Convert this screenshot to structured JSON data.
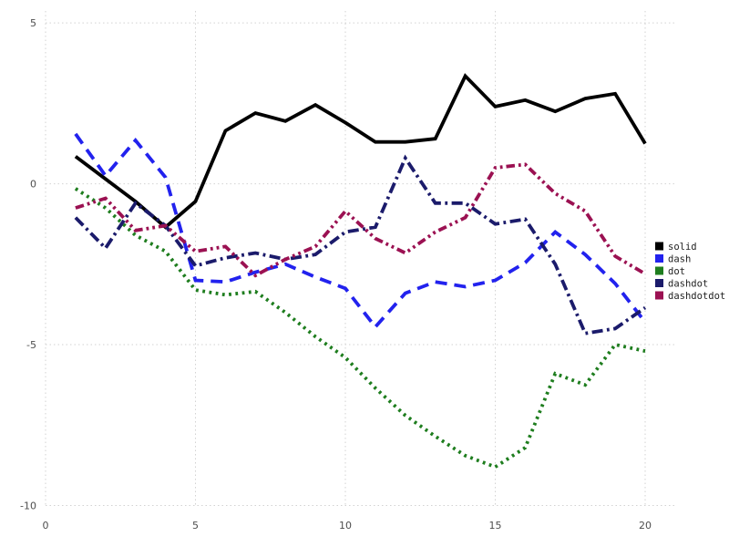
{
  "chart_data": {
    "type": "line",
    "x": [
      1,
      2,
      3,
      4,
      5,
      6,
      7,
      8,
      9,
      10,
      11,
      12,
      13,
      14,
      15,
      16,
      17,
      18,
      19,
      20
    ],
    "series": [
      {
        "name": "solid",
        "color": "#000000",
        "linestyle": "solid",
        "values": [
          0.85,
          0.15,
          -0.55,
          -1.35,
          -0.55,
          1.65,
          2.2,
          1.95,
          2.45,
          1.9,
          1.3,
          1.3,
          1.4,
          3.35,
          2.4,
          2.6,
          2.25,
          2.65,
          2.8,
          1.25
        ]
      },
      {
        "name": "dash",
        "color": "#2222ee",
        "linestyle": "dash",
        "values": [
          1.55,
          0.25,
          1.35,
          0.2,
          -3.0,
          -3.05,
          -2.75,
          -2.5,
          -2.9,
          -3.25,
          -4.45,
          -3.4,
          -3.05,
          -3.2,
          -3.0,
          -2.45,
          -1.5,
          -2.2,
          -3.1,
          -4.3
        ]
      },
      {
        "name": "dot",
        "color": "#1e7d1e",
        "linestyle": "dot",
        "values": [
          -0.15,
          -0.75,
          -1.6,
          -2.1,
          -3.3,
          -3.45,
          -3.35,
          -4.0,
          -4.75,
          -5.4,
          -6.35,
          -7.2,
          -7.85,
          -8.45,
          -8.8,
          -8.2,
          -5.9,
          -6.25,
          -5.0,
          -5.2
        ]
      },
      {
        "name": "dashdot",
        "color": "#1b1b6b",
        "linestyle": "dashdot",
        "values": [
          -1.05,
          -2.0,
          -0.6,
          -1.3,
          -2.55,
          -2.3,
          -2.15,
          -2.35,
          -2.2,
          -1.5,
          -1.35,
          0.8,
          -0.6,
          -0.6,
          -1.25,
          -1.1,
          -2.5,
          -4.65,
          -4.5,
          -3.85
        ]
      },
      {
        "name": "dashdotdot",
        "color": "#9b1152",
        "linestyle": "dashdotdot",
        "values": [
          -0.75,
          -0.45,
          -1.45,
          -1.3,
          -2.1,
          -1.95,
          -2.85,
          -2.35,
          -1.95,
          -0.85,
          -1.7,
          -2.15,
          -1.5,
          -1.05,
          0.5,
          0.6,
          -0.3,
          -0.85,
          -2.25,
          -2.8
        ]
      }
    ],
    "title": "",
    "xlabel": "",
    "ylabel": "",
    "xlim": [
      0,
      20
    ],
    "ylim": [
      -10,
      5
    ],
    "xtick_labels": [
      "0",
      "5",
      "10",
      "15",
      "20"
    ],
    "xtick_values": [
      0,
      5,
      10,
      15,
      20
    ],
    "ytick_labels": [
      "5",
      "0",
      "-5",
      "-10"
    ],
    "ytick_values": [
      5,
      0,
      -5,
      -10
    ],
    "grid": "dotted",
    "legend_position": "right",
    "legend_entries": [
      "solid",
      "dash",
      "dot",
      "dashdot",
      "dashdotdot"
    ]
  },
  "style": {
    "grid_color": "#d2d2d2",
    "tick_label_color": "#4d4d4d",
    "legend_text_color": "#222222",
    "background": "#ffffff"
  }
}
